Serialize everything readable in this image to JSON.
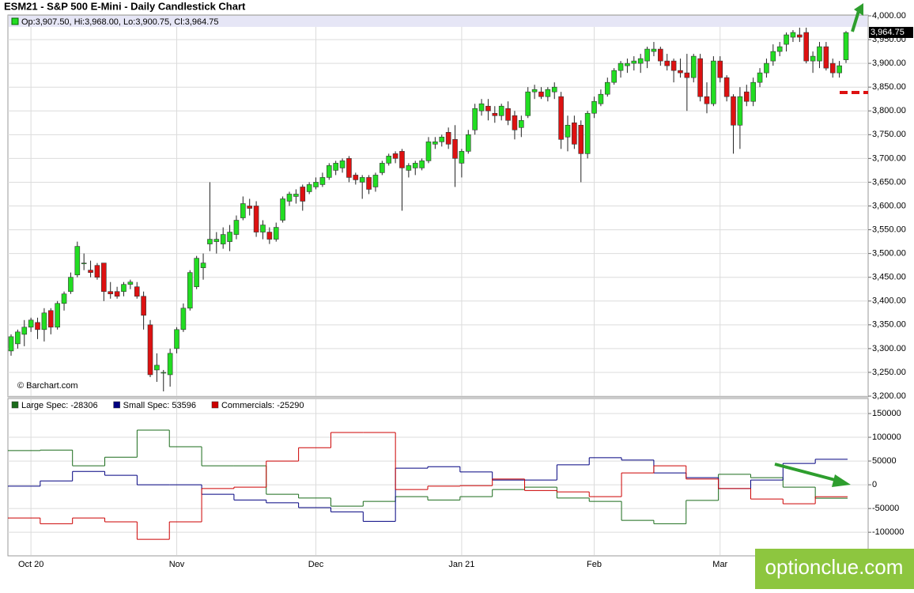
{
  "chart_data": [
    {
      "type": "candlestick",
      "title": "ESM21 - S&P 500 E-Mini - Daily Candlestick Chart",
      "legend_text": "Op:3,907.50, Hi:3,968.00, Lo:3,900.75, Cl:3,964.75",
      "last_price_label": "3,964.75",
      "credit": "© Barchart.com",
      "watermark": "optionclue.com",
      "up_color": "#22dd22",
      "down_color": "#dd1111",
      "ylim": [
        3200,
        4000
      ],
      "yticks": [
        {
          "value": 3200,
          "label": "3,200.00"
        },
        {
          "value": 3250,
          "label": "3,250.00"
        },
        {
          "value": 3300,
          "label": "3,300.00"
        },
        {
          "value": 3350,
          "label": "3,350.00"
        },
        {
          "value": 3400,
          "label": "3,400.00"
        },
        {
          "value": 3450,
          "label": "3,450.00"
        },
        {
          "value": 3500,
          "label": "3,500.00"
        },
        {
          "value": 3550,
          "label": "3,550.00"
        },
        {
          "value": 3600,
          "label": "3,600.00"
        },
        {
          "value": 3650,
          "label": "3,650.00"
        },
        {
          "value": 3700,
          "label": "3,700.00"
        },
        {
          "value": 3750,
          "label": "3,750.00"
        },
        {
          "value": 3800,
          "label": "3,800.00"
        },
        {
          "value": 3850,
          "label": "3,850.00"
        },
        {
          "value": 3900,
          "label": "3,900.00"
        },
        {
          "value": 3950,
          "label": "3,950.00"
        },
        {
          "value": 4000,
          "label": "4,000.00"
        }
      ],
      "grid": true,
      "categories": [
        null,
        null,
        null,
        "Oct 20",
        null,
        null,
        null,
        null,
        null,
        null,
        null,
        null,
        null,
        null,
        null,
        null,
        null,
        null,
        null,
        null,
        null,
        null,
        null,
        null,
        null,
        "Nov",
        null,
        null,
        null,
        null,
        null,
        null,
        null,
        null,
        null,
        null,
        null,
        null,
        null,
        null,
        null,
        null,
        null,
        null,
        null,
        null,
        "Dec",
        null,
        null,
        null,
        null,
        null,
        null,
        null,
        null,
        null,
        null,
        null,
        null,
        null,
        null,
        null,
        null,
        null,
        null,
        null,
        null,
        null,
        "Jan 21",
        null,
        null,
        null,
        null,
        null,
        null,
        null,
        null,
        null,
        null,
        null,
        null,
        null,
        null,
        null,
        null,
        null,
        null,
        null,
        "Feb",
        null,
        null,
        null,
        null,
        null,
        null,
        null,
        null,
        null,
        null,
        null,
        null,
        null,
        null,
        null,
        null,
        null,
        null,
        "Mar",
        null,
        null,
        null,
        null,
        null,
        null,
        null,
        null,
        null,
        null,
        null,
        null,
        null,
        null,
        null,
        null,
        null,
        null,
        null
      ],
      "ohlc": [
        [
          3295,
          3330,
          3285,
          3325
        ],
        [
          3310,
          3340,
          3300,
          3335
        ],
        [
          3330,
          3360,
          3305,
          3345
        ],
        [
          3345,
          3365,
          3335,
          3360
        ],
        [
          3355,
          3365,
          3320,
          3340
        ],
        [
          3340,
          3385,
          3315,
          3375
        ],
        [
          3380,
          3385,
          3330,
          3345
        ],
        [
          3345,
          3400,
          3340,
          3395
        ],
        [
          3395,
          3420,
          3380,
          3415
        ],
        [
          3420,
          3460,
          3415,
          3450
        ],
        [
          3455,
          3525,
          3450,
          3515
        ],
        [
          3480,
          3500,
          3465,
          3480
        ],
        [
          3465,
          3485,
          3450,
          3460
        ],
        [
          3475,
          3480,
          3445,
          3450
        ],
        [
          3480,
          3480,
          3400,
          3420
        ],
        [
          3420,
          3440,
          3405,
          3415
        ],
        [
          3420,
          3430,
          3405,
          3410
        ],
        [
          3420,
          3440,
          3410,
          3435
        ],
        [
          3435,
          3445,
          3425,
          3440
        ],
        [
          3430,
          3440,
          3405,
          3410
        ],
        [
          3410,
          3420,
          3340,
          3370
        ],
        [
          3350,
          3360,
          3240,
          3245
        ],
        [
          3255,
          3290,
          3230,
          3265
        ],
        [
          3250,
          3255,
          3210,
          3250
        ],
        [
          3245,
          3300,
          3220,
          3290
        ],
        [
          3300,
          3345,
          3290,
          3340
        ],
        [
          3340,
          3395,
          3335,
          3385
        ],
        [
          3385,
          3465,
          3380,
          3460
        ],
        [
          3430,
          3495,
          3425,
          3490
        ],
        [
          3470,
          3500,
          3445,
          3480
        ],
        [
          3520,
          3650,
          3505,
          3530
        ],
        [
          3525,
          3545,
          3500,
          3530
        ],
        [
          3520,
          3555,
          3510,
          3540
        ],
        [
          3525,
          3560,
          3505,
          3545
        ],
        [
          3540,
          3580,
          3530,
          3570
        ],
        [
          3575,
          3620,
          3570,
          3605
        ],
        [
          3600,
          3615,
          3580,
          3595
        ],
        [
          3600,
          3610,
          3535,
          3545
        ],
        [
          3545,
          3570,
          3530,
          3560
        ],
        [
          3545,
          3555,
          3520,
          3530
        ],
        [
          3530,
          3565,
          3525,
          3555
        ],
        [
          3570,
          3620,
          3565,
          3615
        ],
        [
          3610,
          3630,
          3600,
          3625
        ],
        [
          3620,
          3635,
          3605,
          3625
        ],
        [
          3640,
          3645,
          3590,
          3610
        ],
        [
          3630,
          3650,
          3625,
          3645
        ],
        [
          3640,
          3660,
          3635,
          3650
        ],
        [
          3645,
          3670,
          3640,
          3660
        ],
        [
          3660,
          3690,
          3655,
          3685
        ],
        [
          3675,
          3695,
          3665,
          3690
        ],
        [
          3680,
          3700,
          3670,
          3695
        ],
        [
          3700,
          3705,
          3650,
          3660
        ],
        [
          3665,
          3670,
          3645,
          3655
        ],
        [
          3650,
          3665,
          3615,
          3660
        ],
        [
          3660,
          3665,
          3625,
          3635
        ],
        [
          3640,
          3670,
          3630,
          3665
        ],
        [
          3670,
          3695,
          3665,
          3690
        ],
        [
          3690,
          3710,
          3685,
          3705
        ],
        [
          3710,
          3715,
          3690,
          3700
        ],
        [
          3715,
          3720,
          3590,
          3680
        ],
        [
          3675,
          3690,
          3660,
          3685
        ],
        [
          3680,
          3695,
          3665,
          3690
        ],
        [
          3680,
          3700,
          3675,
          3695
        ],
        [
          3695,
          3745,
          3690,
          3735
        ],
        [
          3730,
          3745,
          3720,
          3735
        ],
        [
          3735,
          3750,
          3725,
          3745
        ],
        [
          3755,
          3765,
          3720,
          3730
        ],
        [
          3740,
          3770,
          3640,
          3700
        ],
        [
          3690,
          3720,
          3660,
          3715
        ],
        [
          3715,
          3760,
          3710,
          3750
        ],
        [
          3760,
          3815,
          3750,
          3805
        ],
        [
          3800,
          3825,
          3790,
          3815
        ],
        [
          3810,
          3825,
          3780,
          3800
        ],
        [
          3795,
          3810,
          3775,
          3790
        ],
        [
          3790,
          3815,
          3780,
          3810
        ],
        [
          3805,
          3820,
          3770,
          3780
        ],
        [
          3790,
          3800,
          3740,
          3760
        ],
        [
          3765,
          3790,
          3745,
          3780
        ],
        [
          3790,
          3850,
          3785,
          3840
        ],
        [
          3840,
          3855,
          3825,
          3845
        ],
        [
          3840,
          3850,
          3825,
          3830
        ],
        [
          3830,
          3850,
          3820,
          3845
        ],
        [
          3840,
          3860,
          3825,
          3850
        ],
        [
          3830,
          3840,
          3720,
          3740
        ],
        [
          3745,
          3790,
          3715,
          3770
        ],
        [
          3775,
          3790,
          3720,
          3730
        ],
        [
          3770,
          3780,
          3650,
          3710
        ],
        [
          3710,
          3800,
          3700,
          3795
        ],
        [
          3795,
          3830,
          3785,
          3820
        ],
        [
          3815,
          3845,
          3810,
          3835
        ],
        [
          3835,
          3870,
          3830,
          3860
        ],
        [
          3860,
          3890,
          3855,
          3885
        ],
        [
          3885,
          3905,
          3870,
          3900
        ],
        [
          3895,
          3910,
          3880,
          3900
        ],
        [
          3900,
          3915,
          3885,
          3905
        ],
        [
          3900,
          3920,
          3880,
          3910
        ],
        [
          3905,
          3935,
          3890,
          3930
        ],
        [
          3925,
          3945,
          3915,
          3930
        ],
        [
          3930,
          3935,
          3895,
          3905
        ],
        [
          3905,
          3920,
          3885,
          3895
        ],
        [
          3905,
          3910,
          3860,
          3885
        ],
        [
          3885,
          3910,
          3870,
          3880
        ],
        [
          3880,
          3920,
          3800,
          3870
        ],
        [
          3870,
          3920,
          3860,
          3915
        ],
        [
          3910,
          3920,
          3820,
          3830
        ],
        [
          3830,
          3860,
          3795,
          3815
        ],
        [
          3815,
          3915,
          3810,
          3905
        ],
        [
          3905,
          3915,
          3860,
          3870
        ],
        [
          3870,
          3875,
          3820,
          3830
        ],
        [
          3830,
          3835,
          3710,
          3770
        ],
        [
          3770,
          3850,
          3720,
          3830
        ],
        [
          3840,
          3855,
          3810,
          3820
        ],
        [
          3820,
          3870,
          3810,
          3860
        ],
        [
          3860,
          3890,
          3850,
          3880
        ],
        [
          3880,
          3910,
          3870,
          3900
        ],
        [
          3905,
          3940,
          3895,
          3925
        ],
        [
          3925,
          3945,
          3915,
          3935
        ],
        [
          3940,
          3965,
          3925,
          3960
        ],
        [
          3955,
          3970,
          3945,
          3965
        ],
        [
          3960,
          3975,
          3945,
          3955
        ],
        [
          3965,
          3975,
          3900,
          3905
        ],
        [
          3905,
          3925,
          3880,
          3915
        ],
        [
          3905,
          3945,
          3890,
          3935
        ],
        [
          3935,
          3945,
          3885,
          3890
        ],
        [
          3900,
          3910,
          3870,
          3880
        ],
        [
          3880,
          3905,
          3870,
          3895
        ],
        [
          3907.5,
          3968,
          3900.75,
          3964.75
        ]
      ]
    },
    {
      "type": "step",
      "ylim": [
        -148000,
        180000
      ],
      "yticks": [
        -100000,
        -50000,
        0,
        50000,
        100000,
        150000
      ],
      "grid": true,
      "series": [
        {
          "name": "Large Spec: -28306",
          "color": "#1a6b1a",
          "values": [
            72000,
            73000,
            40000,
            58000,
            115000,
            80000,
            40000,
            40000,
            -20000,
            -28000,
            -45000,
            -35000,
            -25000,
            -32000,
            -25000,
            -10000,
            -5000,
            -28000,
            -35000,
            -75000,
            -82000,
            -33000,
            22000,
            15000,
            -5000,
            -28306
          ]
        },
        {
          "name": "Small Spec: 53596",
          "color": "#000080",
          "values": [
            -3000,
            8000,
            28000,
            20000,
            0,
            0,
            -20000,
            -32000,
            -38000,
            -48000,
            -57000,
            -77000,
            35000,
            38000,
            27000,
            10000,
            10000,
            42000,
            57000,
            52000,
            25000,
            15000,
            -8000,
            10000,
            45000,
            53596
          ]
        },
        {
          "name": "Commercials: -25290",
          "color": "#cc0000",
          "values": [
            -70000,
            -82000,
            -70000,
            -78000,
            -115000,
            -78000,
            -8000,
            -5000,
            50000,
            78000,
            110000,
            110000,
            -10000,
            -3000,
            -2000,
            12000,
            -12000,
            -15000,
            -25000,
            25000,
            40000,
            12000,
            -8000,
            -30000,
            -40000,
            -25290
          ]
        }
      ]
    }
  ]
}
